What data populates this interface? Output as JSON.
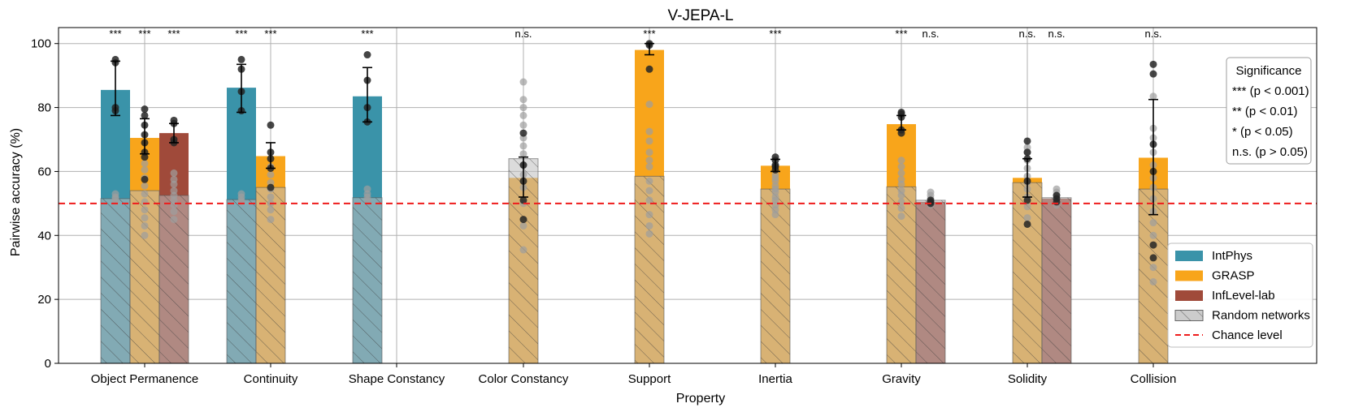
{
  "chart_data": {
    "type": "bar",
    "title": "V-JEPA-L",
    "xlabel": "Property",
    "ylabel": "Pairwise accuracy (%)",
    "ylim": [
      0,
      105
    ],
    "yticks": [
      0,
      20,
      40,
      60,
      80,
      100
    ],
    "grid": true,
    "chance_level": 50,
    "categories": [
      "Object Permanence",
      "Continuity",
      "Shape Constancy",
      "Color Constancy",
      "Support",
      "Inertia",
      "Gravity",
      "Solidity",
      "Collision"
    ],
    "series": [
      {
        "name": "IntPhys",
        "color": "#3a93a9",
        "values": [
          85.5,
          86.2,
          83.5,
          null,
          null,
          null,
          null,
          null,
          null
        ],
        "random": [
          51.5,
          51.2,
          51.8,
          null,
          null,
          null,
          null,
          null,
          null
        ],
        "err": [
          [
            77.5,
            94.5
          ],
          [
            78.5,
            93.5
          ],
          [
            75.5,
            92.5
          ],
          null,
          null,
          null,
          null,
          null,
          null
        ],
        "significance": [
          "***",
          "***",
          "***",
          null,
          null,
          null,
          null,
          null,
          null
        ],
        "points": [
          [
            95,
            94,
            80,
            79
          ],
          [
            95,
            92,
            85,
            79
          ],
          [
            96.5,
            88.5,
            80,
            75.5
          ],
          null,
          null,
          null,
          null,
          null,
          null
        ],
        "random_points": [
          [
            53,
            52,
            51.5,
            50.5
          ],
          [
            53,
            52,
            51,
            50.5
          ],
          [
            54.5,
            53,
            52,
            51
          ],
          null,
          null,
          null,
          null,
          null,
          null
        ]
      },
      {
        "name": "GRASP",
        "color": "#f8a51b",
        "values": [
          70.5,
          64.8,
          null,
          58.0,
          98.0,
          61.8,
          74.8,
          58.0,
          64.3
        ],
        "random": [
          54.0,
          55.0,
          null,
          64.0,
          58.5,
          54.5,
          55.2,
          56.5,
          54.5
        ],
        "err": [
          [
            65.5,
            76.5
          ],
          [
            61.0,
            69.0
          ],
          null,
          [
            52.0,
            64.5
          ],
          [
            96.5,
            100.0
          ],
          [
            60.0,
            63.8
          ],
          [
            73.0,
            77.5
          ],
          [
            52.0,
            64.0
          ],
          [
            46.5,
            82.5
          ]
        ],
        "significance": [
          "***",
          "***",
          null,
          "n.s.",
          "***",
          "***",
          "***",
          "n.s.",
          "n.s."
        ],
        "points": [
          [
            79.5,
            77.5,
            74.5,
            71.5,
            69,
            66,
            64.5,
            57.5
          ],
          [
            74.5,
            66,
            64,
            61,
            55
          ],
          null,
          [
            72,
            62,
            57,
            51,
            45
          ],
          [
            100,
            99.5,
            92
          ],
          [
            64.5,
            63.5,
            62,
            61.5,
            60.5
          ],
          [
            78.5,
            78,
            77,
            73,
            72
          ],
          [
            69.5,
            66,
            64,
            57,
            51,
            43.5
          ],
          [
            93.5,
            90.5,
            68.5,
            60,
            37,
            33
          ]
        ],
        "random_points": [
          [
            62.5,
            60.5,
            58,
            55.5,
            53,
            50.5,
            48,
            45.5,
            43,
            40
          ],
          [
            61.5,
            59,
            56.5,
            54.5,
            52,
            50,
            48,
            45
          ],
          null,
          [
            88,
            82.5,
            80,
            77.5,
            74.5,
            70.5,
            68,
            65.5,
            62,
            59,
            55,
            50,
            43,
            35.5
          ],
          [
            81,
            72.5,
            69.5,
            66,
            63.5,
            61.5,
            57,
            54,
            51,
            46.5,
            43,
            40.5
          ],
          [
            59,
            58,
            57,
            55.5,
            54.5,
            53.5,
            52,
            51,
            49.5,
            48,
            46.5
          ],
          [
            63.5,
            61.5,
            59.5,
            57.5,
            56,
            54,
            52.5,
            50.5,
            48.5,
            46
          ],
          [
            67.5,
            66,
            63.5,
            61,
            58.5,
            56.5,
            54.5,
            52,
            49,
            45.5
          ],
          [
            83.5,
            73.5,
            70.5,
            66,
            62,
            58,
            55,
            51.5,
            47.5,
            44,
            40,
            30,
            25.5
          ]
        ]
      },
      {
        "name": "InfLevel-lab",
        "color": "#a04a3a",
        "values": [
          72.0,
          null,
          null,
          null,
          null,
          null,
          50.5,
          51.5,
          null
        ],
        "random": [
          52.5,
          null,
          null,
          null,
          null,
          null,
          51.0,
          51.8,
          null
        ],
        "err": [
          [
            69.0,
            75.0
          ],
          null,
          null,
          null,
          null,
          null,
          null,
          null,
          null
        ],
        "significance": [
          "***",
          null,
          null,
          null,
          null,
          null,
          "n.s.",
          "n.s.",
          null
        ],
        "points": [
          [
            76,
            75,
            70,
            69
          ],
          null,
          null,
          null,
          null,
          null,
          [
            51,
            50.5,
            50
          ],
          [
            52.5,
            51.5,
            50.5
          ],
          null
        ],
        "random_points": [
          [
            59.5,
            57.5,
            56,
            54,
            52.5,
            51,
            49.5,
            47.5,
            45
          ],
          null,
          null,
          null,
          null,
          null,
          [
            53.5,
            52.5,
            51.5,
            50.5,
            49.5
          ],
          [
            54.5,
            53.5,
            52.5,
            51.5,
            50.5,
            49.5
          ],
          null
        ]
      }
    ],
    "legend": {
      "position": "lower-right",
      "entries": [
        "IntPhys",
        "GRASP",
        "InfLevel-lab",
        "Random networks",
        "Chance level"
      ]
    },
    "significance_legend": {
      "position": "upper-right",
      "title": "Significance",
      "entries": [
        "*** (p < 0.001)",
        "** (p < 0.01)",
        "* (p < 0.05)",
        "n.s. (p > 0.05)"
      ]
    }
  }
}
